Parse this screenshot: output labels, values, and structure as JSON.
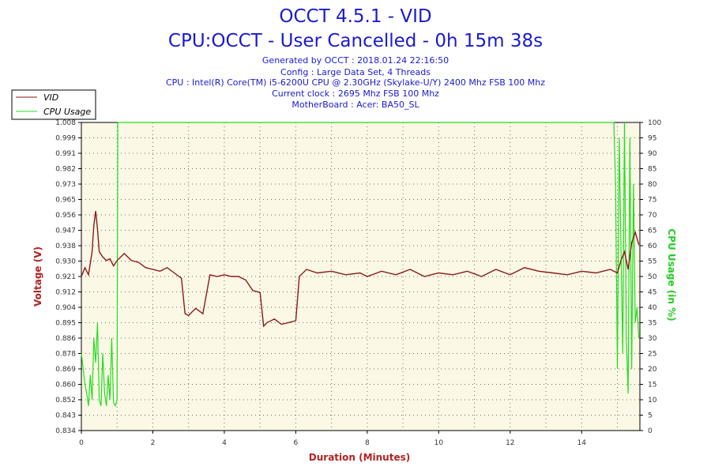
{
  "chart_data": {
    "type": "line",
    "title": "OCCT 4.5.1 - VID",
    "subtitle": "CPU:OCCT - User Cancelled - 0h 15m 38s",
    "info_lines": [
      "Generated by OCCT : 2018.01.24 22:16:50",
      "Config : Large Data Set, 4 Threads",
      "CPU : Intel(R) Core(TM) i5-6200U CPU @ 2.30GHz (Skylake-U/Y) 2400 Mhz FSB 100 Mhz",
      "Current clock : 2695 Mhz FSB 100 Mhz",
      "MotherBoard : Acer: BA50_SL"
    ],
    "xlabel": "Duration (Minutes)",
    "ylabel_left": "Voltage (V)",
    "ylabel_right": "CPU Usage (in %)",
    "xlim": [
      0,
      15.63
    ],
    "ylim_left": [
      0.834,
      1.008
    ],
    "ylim_right": [
      0,
      100
    ],
    "x_ticks": [
      "0",
      "2",
      "4",
      "6",
      "8",
      "10",
      "12",
      "14"
    ],
    "y_left_ticks": [
      "0.834",
      "0.843",
      "0.852",
      "0.860",
      "0.869",
      "0.878",
      "0.886",
      "0.895",
      "0.904",
      "0.912",
      "0.921",
      "0.930",
      "0.938",
      "0.947",
      "0.956",
      "0.965",
      "0.973",
      "0.982",
      "0.991",
      "0.999",
      "1.008"
    ],
    "y_right_ticks": [
      "0",
      "5",
      "10",
      "15",
      "20",
      "25",
      "30",
      "35",
      "40",
      "45",
      "50",
      "55",
      "60",
      "65",
      "70",
      "75",
      "80",
      "85",
      "90",
      "95",
      "100"
    ],
    "grid": true,
    "legend_position": "top-left",
    "colors": {
      "vid": "#8b1a1a",
      "cpu": "#22dd22",
      "plot_bg": "#fbf8e6",
      "title": "#1a1ad0",
      "ylabel_right": "#22cc22"
    },
    "series": [
      {
        "name": "VID",
        "axis": "left",
        "x": [
          0,
          0.1,
          0.2,
          0.3,
          0.35,
          0.4,
          0.45,
          0.5,
          0.6,
          0.7,
          0.8,
          0.9,
          1.0,
          1.2,
          1.4,
          1.6,
          1.8,
          2.0,
          2.2,
          2.4,
          2.6,
          2.8,
          2.9,
          3.0,
          3.2,
          3.4,
          3.6,
          3.8,
          4.0,
          4.2,
          4.4,
          4.6,
          4.8,
          5.0,
          5.1,
          5.2,
          5.4,
          5.6,
          5.8,
          6.0,
          6.1,
          6.3,
          6.6,
          7.0,
          7.4,
          7.8,
          8.0,
          8.4,
          8.8,
          9.2,
          9.6,
          10.0,
          10.4,
          10.8,
          11.2,
          11.6,
          12.0,
          12.4,
          12.8,
          13.2,
          13.6,
          14.0,
          14.4,
          14.8,
          15.0,
          15.1,
          15.2,
          15.3,
          15.4,
          15.5,
          15.6
        ],
        "values": [
          0.921,
          0.926,
          0.922,
          0.935,
          0.95,
          0.958,
          0.948,
          0.935,
          0.932,
          0.93,
          0.931,
          0.927,
          0.93,
          0.934,
          0.93,
          0.929,
          0.926,
          0.925,
          0.924,
          0.926,
          0.923,
          0.92,
          0.9,
          0.899,
          0.903,
          0.9,
          0.922,
          0.921,
          0.922,
          0.921,
          0.921,
          0.919,
          0.913,
          0.912,
          0.893,
          0.895,
          0.897,
          0.894,
          0.895,
          0.896,
          0.921,
          0.925,
          0.923,
          0.924,
          0.922,
          0.923,
          0.921,
          0.924,
          0.922,
          0.925,
          0.921,
          0.923,
          0.922,
          0.924,
          0.921,
          0.925,
          0.922,
          0.926,
          0.924,
          0.923,
          0.922,
          0.924,
          0.923,
          0.925,
          0.923,
          0.93,
          0.935,
          0.925,
          0.94,
          0.946,
          0.939
        ]
      },
      {
        "name": "CPU Usage",
        "axis": "right",
        "x": [
          0,
          0.05,
          0.1,
          0.15,
          0.2,
          0.25,
          0.3,
          0.35,
          0.4,
          0.45,
          0.5,
          0.55,
          0.6,
          0.65,
          0.7,
          0.75,
          0.8,
          0.85,
          0.9,
          0.95,
          1.0,
          1.02,
          1.05,
          2,
          4,
          6,
          8,
          10,
          12,
          14,
          14.9,
          14.95,
          15.0,
          15.05,
          15.1,
          15.15,
          15.2,
          15.25,
          15.3,
          15.35,
          15.4,
          15.45,
          15.5,
          15.55,
          15.6
        ],
        "values": [
          25,
          20,
          15,
          12,
          8,
          18,
          10,
          30,
          22,
          35,
          10,
          8,
          25,
          12,
          8,
          18,
          10,
          30,
          9,
          8,
          10,
          100,
          100,
          100,
          100,
          100,
          100,
          100,
          100,
          100,
          100,
          80,
          20,
          95,
          60,
          25,
          100,
          30,
          12,
          95,
          20,
          80,
          35,
          40,
          30
        ]
      }
    ]
  }
}
